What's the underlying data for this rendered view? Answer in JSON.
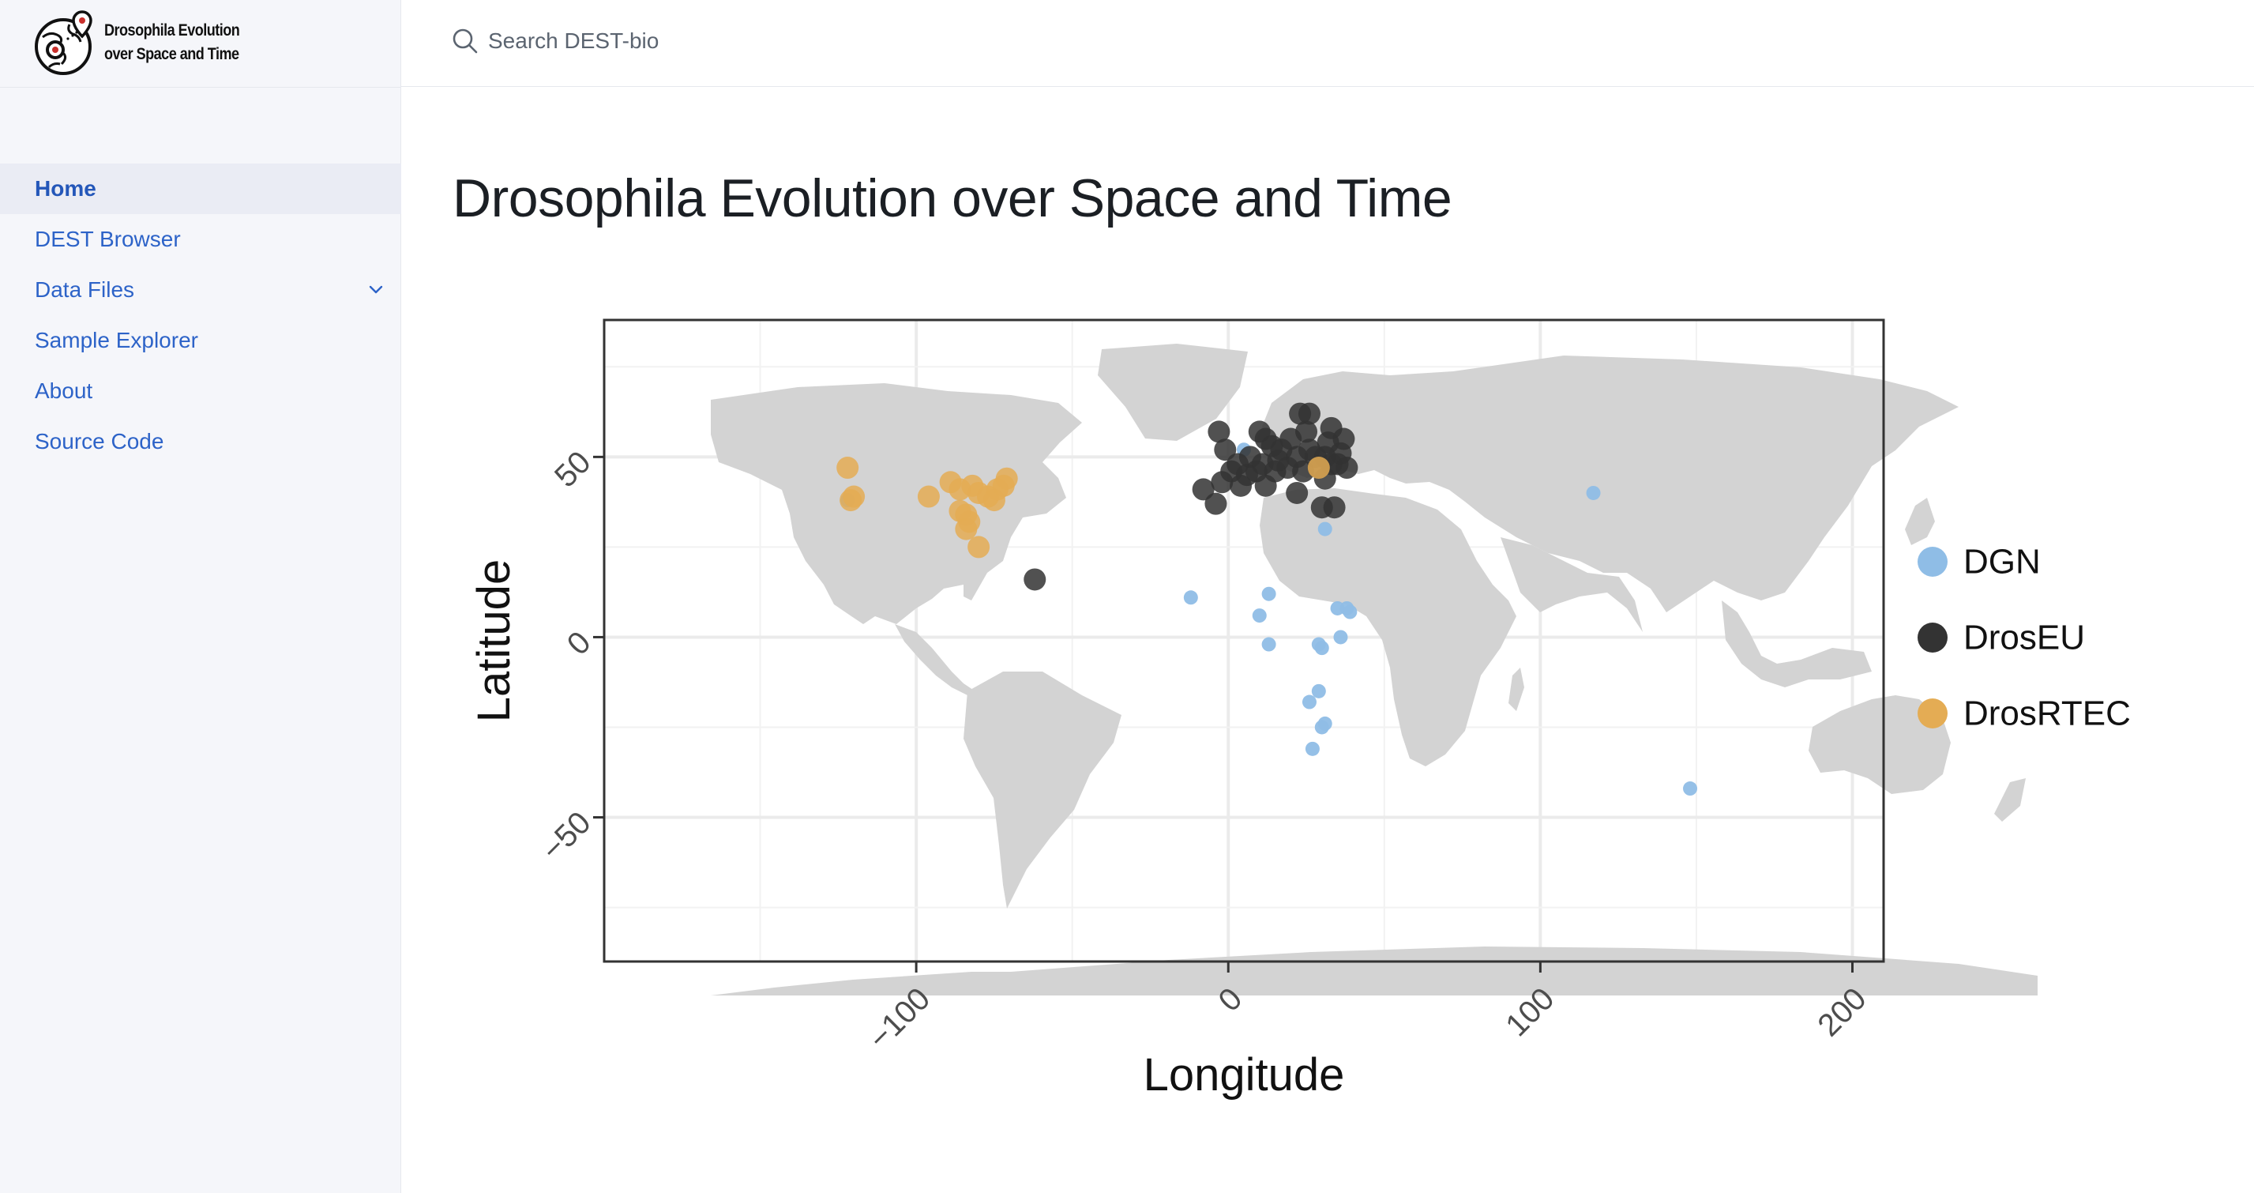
{
  "app": {
    "logo_line1": "Drosophila Evolution",
    "logo_line2": "over Space and Time"
  },
  "search": {
    "label": "Search DEST-bio"
  },
  "sidebar": {
    "items": [
      {
        "label": "Home",
        "active": true
      },
      {
        "label": "DEST Browser"
      },
      {
        "label": "Data Files",
        "expandable": true
      },
      {
        "label": "Sample Explorer"
      },
      {
        "label": "About"
      },
      {
        "label": "Source Code"
      }
    ]
  },
  "page": {
    "title": "Drosophila Evolution over Space and Time"
  },
  "colors": {
    "accent": "#2d63c8",
    "DGN": "#8fbde6",
    "DrosEU": "#333333",
    "DrosRTEC": "#e4ac54",
    "land": "#d3d3d3"
  },
  "chart_data": {
    "type": "scatter",
    "xlabel": "Longitude",
    "ylabel": "Latitude",
    "xlim": [
      -200,
      210
    ],
    "ylim": [
      -90,
      88
    ],
    "xticks": [
      -100,
      0,
      100,
      200
    ],
    "yticks": [
      -50,
      0,
      50
    ],
    "grid": true,
    "legend_position": "right",
    "series": [
      {
        "name": "DGN",
        "color": "#8fbde6",
        "points": [
          [
            -122,
            38
          ],
          [
            5,
            52
          ],
          [
            117,
            40
          ],
          [
            31,
            30
          ],
          [
            -12,
            11
          ],
          [
            13,
            12
          ],
          [
            10,
            6
          ],
          [
            13,
            -2
          ],
          [
            29,
            -2
          ],
          [
            30,
            -3
          ],
          [
            35,
            8
          ],
          [
            38,
            8
          ],
          [
            39,
            7
          ],
          [
            36,
            0
          ],
          [
            29,
            -15
          ],
          [
            26,
            -18
          ],
          [
            30,
            -25
          ],
          [
            31,
            -24
          ],
          [
            27,
            -31
          ],
          [
            148,
            -42
          ]
        ]
      },
      {
        "name": "DrosEU",
        "color": "#333333",
        "points": [
          [
            -62,
            16
          ],
          [
            -3,
            57
          ],
          [
            -1,
            52
          ],
          [
            1,
            46
          ],
          [
            -8,
            41
          ],
          [
            -4,
            37
          ],
          [
            4,
            42
          ],
          [
            3,
            48
          ],
          [
            7,
            50
          ],
          [
            9,
            46
          ],
          [
            11,
            48
          ],
          [
            10,
            57
          ],
          [
            12,
            55
          ],
          [
            14,
            53
          ],
          [
            16,
            49
          ],
          [
            17,
            52
          ],
          [
            19,
            47
          ],
          [
            20,
            55
          ],
          [
            22,
            50
          ],
          [
            23,
            62
          ],
          [
            24,
            46
          ],
          [
            25,
            57
          ],
          [
            26,
            62
          ],
          [
            26,
            52
          ],
          [
            28,
            50
          ],
          [
            29,
            47
          ],
          [
            31,
            50
          ],
          [
            31,
            44
          ],
          [
            32,
            54
          ],
          [
            33,
            48
          ],
          [
            33,
            58
          ],
          [
            35,
            48
          ],
          [
            36,
            51
          ],
          [
            37,
            55
          ],
          [
            38,
            47
          ],
          [
            30,
            36
          ],
          [
            34,
            36
          ],
          [
            22,
            40
          ],
          [
            6,
            45
          ],
          [
            15,
            46
          ],
          [
            -2,
            43
          ],
          [
            12,
            42
          ]
        ]
      },
      {
        "name": "DrosRTEC",
        "color": "#e4ac54",
        "points": [
          [
            -122,
            47
          ],
          [
            -121,
            38
          ],
          [
            -120,
            39
          ],
          [
            -96,
            39
          ],
          [
            -89,
            43
          ],
          [
            -86,
            41
          ],
          [
            -82,
            42
          ],
          [
            -80,
            40
          ],
          [
            -77,
            39
          ],
          [
            -75,
            38
          ],
          [
            -74,
            41
          ],
          [
            -72,
            42
          ],
          [
            -71,
            44
          ],
          [
            -80,
            25
          ],
          [
            -83,
            32
          ],
          [
            -84,
            34
          ],
          [
            -84,
            30
          ],
          [
            -86,
            35
          ],
          [
            29,
            47
          ]
        ]
      }
    ]
  }
}
